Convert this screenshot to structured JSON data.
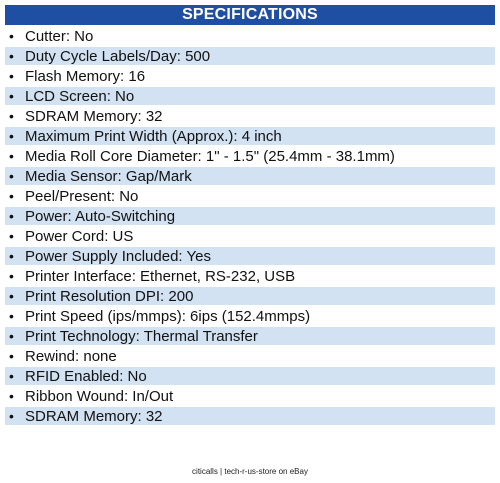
{
  "header": {
    "title": "SPECIFICATIONS"
  },
  "bullet": "•",
  "specs": [
    "Cutter: No",
    "Duty Cycle Labels/Day: 500",
    "Flash Memory: 16",
    "LCD Screen: No",
    "SDRAM Memory: 32",
    "Maximum Print Width (Approx.): 4 inch",
    "Media Roll Core Diameter: 1\" - 1.5\" (25.4mm - 38.1mm)",
    "Media Sensor: Gap/Mark",
    "Peel/Present: No",
    "Power: Auto-Switching",
    "Power Cord: US",
    "Power Supply Included: Yes",
    "Printer Interface: Ethernet, RS-232, USB",
    "Print Resolution DPI: 200",
    "Print Speed (ips/mmps): 6ips (152.4mmps)",
    "Print Technology: Thermal Transfer",
    "Rewind: none",
    "RFID Enabled: No",
    "Ribbon Wound: In/Out",
    "SDRAM Memory: 32"
  ],
  "footer": {
    "text": "citicalls | tech-r-us-store on eBay"
  },
  "colors": {
    "header_background": "#1f4fa3",
    "header_text": "#ffffff",
    "row_alt_background": "#d3e2f3"
  }
}
